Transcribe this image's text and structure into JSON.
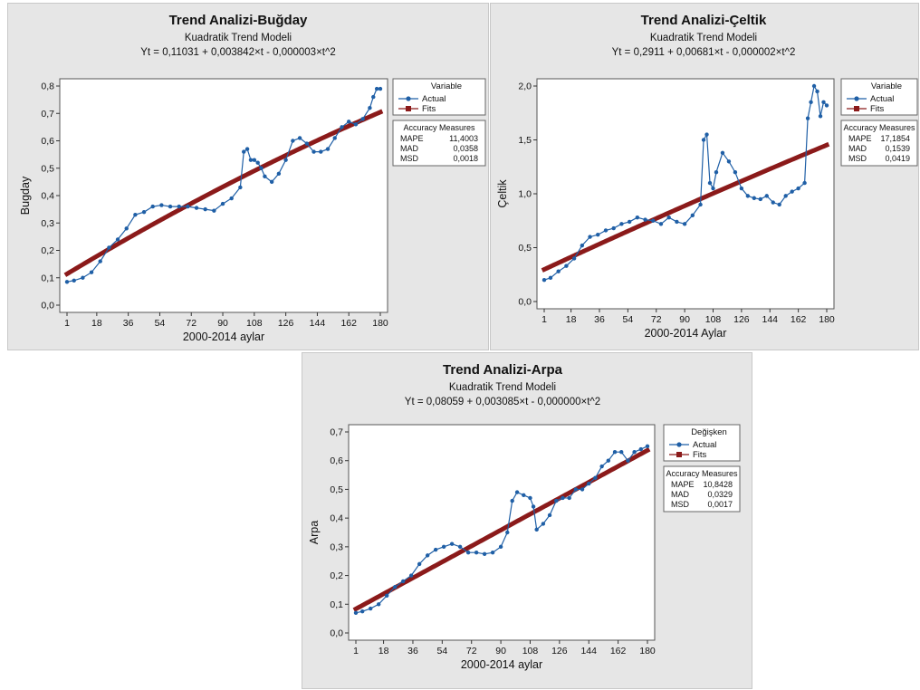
{
  "chart_data": [
    {
      "type": "line",
      "title": "Trend Analizi-Buğday",
      "subtitle": "Kuadratik Trend Modeli",
      "equation": "Yt = 0,11031 + 0,003842×t - 0,000003×t^2",
      "xlabel": "2000-2014 aylar",
      "ylabel": "Bugday",
      "xlim": [
        1,
        180
      ],
      "ylim": [
        0,
        0.8
      ],
      "x_ticks": [
        "1",
        "18",
        "36",
        "54",
        "72",
        "90",
        "108",
        "126",
        "144",
        "162",
        "180"
      ],
      "y_ticks": [
        "0,0",
        "0,1",
        "0,2",
        "0,3",
        "0,4",
        "0,5",
        "0,6",
        "0,7",
        "0,8"
      ],
      "legend": {
        "title": "Variable",
        "entries": [
          "Actual",
          "Fits"
        ],
        "placement": "right"
      },
      "accuracy": {
        "title": "Accuracy Measures",
        "rows": [
          {
            "label": "MAPE",
            "value": "11,4003"
          },
          {
            "label": "MAD",
            "value": "0,0358"
          },
          {
            "label": "MSD",
            "value": "0,0018"
          }
        ]
      },
      "model": {
        "a": 0.11031,
        "b": 0.003842,
        "c": -3e-06
      },
      "series": [
        {
          "name": "Actual",
          "color": "#1f5fa6",
          "marker": "circle",
          "x": [
            1,
            5,
            10,
            15,
            20,
            25,
            30,
            35,
            40,
            45,
            50,
            55,
            60,
            65,
            70,
            75,
            80,
            85,
            90,
            95,
            100,
            102,
            104,
            106,
            108,
            110,
            112,
            114,
            118,
            122,
            126,
            130,
            134,
            138,
            142,
            146,
            150,
            154,
            158,
            162,
            166,
            170,
            174,
            176,
            178,
            180
          ],
          "y": [
            0.085,
            0.09,
            0.1,
            0.12,
            0.16,
            0.21,
            0.24,
            0.28,
            0.33,
            0.34,
            0.36,
            0.365,
            0.36,
            0.36,
            0.36,
            0.355,
            0.35,
            0.345,
            0.37,
            0.39,
            0.43,
            0.56,
            0.57,
            0.53,
            0.53,
            0.52,
            0.5,
            0.47,
            0.45,
            0.48,
            0.53,
            0.6,
            0.61,
            0.59,
            0.56,
            0.56,
            0.57,
            0.61,
            0.65,
            0.67,
            0.66,
            0.68,
            0.72,
            0.76,
            0.79,
            0.79
          ]
        },
        {
          "name": "Fits",
          "color": "#8b1a1a",
          "marker": "square"
        }
      ]
    },
    {
      "type": "line",
      "title": "Trend Analizi-Çeltik",
      "subtitle": "Kuadratik Trend Modeli",
      "equation": "Yt = 0,2911 + 0,00681×t - 0,000002×t^2",
      "xlabel": "2000-2014 Aylar",
      "ylabel": "Çeltik",
      "xlim": [
        1,
        180
      ],
      "ylim": [
        0,
        2.0
      ],
      "x_ticks": [
        "1",
        "18",
        "36",
        "54",
        "72",
        "90",
        "108",
        "126",
        "144",
        "162",
        "180"
      ],
      "y_ticks": [
        "0,0",
        "0,5",
        "1,0",
        "1,5",
        "2,0"
      ],
      "legend": {
        "title": "Variable",
        "entries": [
          "Actual",
          "Fits"
        ],
        "placement": "right"
      },
      "accuracy": {
        "title": "Accuracy Measures",
        "rows": [
          {
            "label": "MAPE",
            "value": "17,1854"
          },
          {
            "label": "MAD",
            "value": "0,1539"
          },
          {
            "label": "MSD",
            "value": "0,0419"
          }
        ]
      },
      "model": {
        "a": 0.2911,
        "b": 0.00681,
        "c": -2e-06
      },
      "series": [
        {
          "name": "Actual",
          "color": "#1f5fa6",
          "marker": "circle",
          "x": [
            1,
            5,
            10,
            15,
            20,
            25,
            30,
            35,
            40,
            45,
            50,
            55,
            60,
            65,
            70,
            75,
            80,
            85,
            90,
            95,
            100,
            102,
            104,
            106,
            108,
            110,
            114,
            118,
            122,
            126,
            130,
            134,
            138,
            142,
            146,
            150,
            154,
            158,
            162,
            166,
            168,
            170,
            172,
            174,
            176,
            178,
            180
          ],
          "y": [
            0.2,
            0.22,
            0.28,
            0.33,
            0.4,
            0.52,
            0.6,
            0.62,
            0.66,
            0.68,
            0.72,
            0.74,
            0.78,
            0.76,
            0.75,
            0.72,
            0.78,
            0.74,
            0.72,
            0.8,
            0.9,
            1.5,
            1.55,
            1.1,
            1.05,
            1.2,
            1.38,
            1.3,
            1.2,
            1.05,
            0.98,
            0.96,
            0.95,
            0.98,
            0.92,
            0.9,
            0.98,
            1.02,
            1.05,
            1.1,
            1.7,
            1.85,
            2.0,
            1.95,
            1.72,
            1.85,
            1.82
          ]
        },
        {
          "name": "Fits",
          "color": "#8b1a1a",
          "marker": "square"
        }
      ]
    },
    {
      "type": "line",
      "title": "Trend Analizi-Arpa",
      "subtitle": "Kuadratik Trend Modeli",
      "equation": "Yt = 0,08059 + 0,003085×t - 0,000000×t^2",
      "xlabel": "2000-2014 aylar",
      "ylabel": "Arpa",
      "xlim": [
        1,
        180
      ],
      "ylim": [
        0,
        0.7
      ],
      "x_ticks": [
        "1",
        "18",
        "36",
        "54",
        "72",
        "90",
        "108",
        "126",
        "144",
        "162",
        "180"
      ],
      "y_ticks": [
        "0,0",
        "0,1",
        "0,2",
        "0,3",
        "0,4",
        "0,5",
        "0,6",
        "0,7"
      ],
      "legend": {
        "title": "Değişken",
        "entries": [
          "Actual",
          "Fits"
        ],
        "placement": "right"
      },
      "accuracy": {
        "title": "Accuracy Measures",
        "rows": [
          {
            "label": "MAPE",
            "value": "10,8428"
          },
          {
            "label": "MAD",
            "value": "0,0329"
          },
          {
            "label": "MSD",
            "value": "0,0017"
          }
        ]
      },
      "model": {
        "a": 0.08059,
        "b": 0.003085,
        "c": 0
      },
      "series": [
        {
          "name": "Actual",
          "color": "#1f5fa6",
          "marker": "circle",
          "x": [
            1,
            5,
            10,
            15,
            20,
            25,
            30,
            35,
            40,
            45,
            50,
            55,
            60,
            65,
            70,
            75,
            80,
            85,
            90,
            94,
            97,
            100,
            104,
            108,
            110,
            112,
            116,
            120,
            124,
            128,
            132,
            136,
            140,
            144,
            148,
            152,
            156,
            160,
            164,
            168,
            172,
            176,
            180
          ],
          "y": [
            0.07,
            0.075,
            0.085,
            0.1,
            0.13,
            0.16,
            0.18,
            0.2,
            0.24,
            0.27,
            0.29,
            0.3,
            0.31,
            0.3,
            0.28,
            0.28,
            0.275,
            0.28,
            0.3,
            0.35,
            0.46,
            0.49,
            0.48,
            0.47,
            0.44,
            0.36,
            0.38,
            0.41,
            0.46,
            0.47,
            0.47,
            0.5,
            0.5,
            0.52,
            0.54,
            0.58,
            0.6,
            0.63,
            0.63,
            0.6,
            0.63,
            0.64,
            0.65
          ]
        },
        {
          "name": "Fits",
          "color": "#8b1a1a",
          "marker": "square"
        }
      ]
    }
  ]
}
